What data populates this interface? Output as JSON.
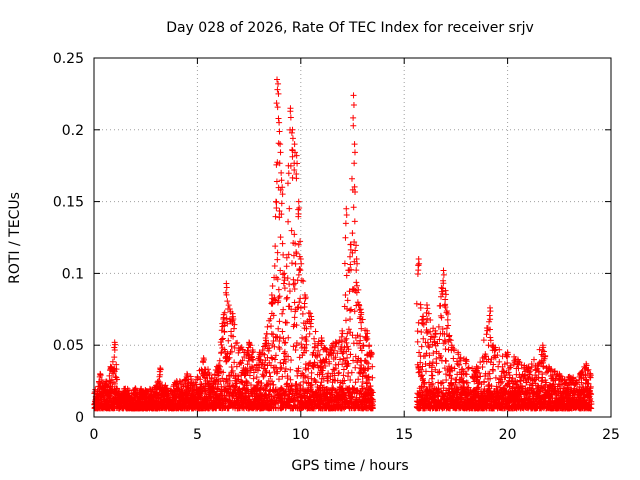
{
  "chart_data": {
    "type": "scatter",
    "title": "Day 028 of 2026, Rate Of TEC Index for receiver srjv",
    "xlabel": "GPS time / hours",
    "ylabel": "ROTI / TECUs",
    "xlim": [
      0,
      25
    ],
    "ylim": [
      0,
      0.25
    ],
    "xticks": [
      0,
      5,
      10,
      15,
      20,
      25
    ],
    "yticks": [
      0,
      0.05,
      0.1,
      0.15,
      0.2,
      0.25
    ],
    "xtick_labels": [
      "0",
      "5",
      "10",
      "15",
      "20",
      "25"
    ],
    "ytick_labels": [
      "0",
      "0.05",
      "0.1",
      "0.15",
      "0.2",
      "0.25"
    ],
    "grid": true,
    "marker": "+",
    "marker_color": "#ff0000",
    "data_gap_hours": [
      13.5,
      15.6
    ],
    "series": [
      {
        "name": "ROTI",
        "points": [
          [
            0.1,
            0.013
          ],
          [
            0.3,
            0.03
          ],
          [
            0.5,
            0.022
          ],
          [
            0.8,
            0.035
          ],
          [
            1.0,
            0.052
          ],
          [
            1.2,
            0.018
          ],
          [
            1.5,
            0.015
          ],
          [
            2.0,
            0.02
          ],
          [
            2.5,
            0.018
          ],
          [
            3.0,
            0.022
          ],
          [
            3.2,
            0.034
          ],
          [
            3.5,
            0.02
          ],
          [
            4.0,
            0.025
          ],
          [
            4.5,
            0.03
          ],
          [
            5.0,
            0.028
          ],
          [
            5.3,
            0.041
          ],
          [
            5.8,
            0.025
          ],
          [
            6.2,
            0.065
          ],
          [
            6.4,
            0.093
          ],
          [
            6.7,
            0.072
          ],
          [
            7.0,
            0.048
          ],
          [
            7.5,
            0.052
          ],
          [
            8.0,
            0.045
          ],
          [
            8.3,
            0.055
          ],
          [
            8.6,
            0.085
          ],
          [
            8.8,
            0.15
          ],
          [
            8.85,
            0.235
          ],
          [
            8.9,
            0.232
          ],
          [
            8.95,
            0.205
          ],
          [
            9.0,
            0.19
          ],
          [
            9.05,
            0.17
          ],
          [
            9.1,
            0.16
          ],
          [
            9.2,
            0.1
          ],
          [
            9.4,
            0.175
          ],
          [
            9.5,
            0.215
          ],
          [
            9.6,
            0.2
          ],
          [
            9.7,
            0.19
          ],
          [
            9.8,
            0.182
          ],
          [
            9.9,
            0.15
          ],
          [
            10.0,
            0.11
          ],
          [
            10.2,
            0.085
          ],
          [
            10.5,
            0.07
          ],
          [
            11.0,
            0.055
          ],
          [
            11.5,
            0.05
          ],
          [
            12.0,
            0.06
          ],
          [
            12.2,
            0.145
          ],
          [
            12.4,
            0.12
          ],
          [
            12.55,
            0.224
          ],
          [
            12.6,
            0.19
          ],
          [
            12.7,
            0.11
          ],
          [
            12.9,
            0.075
          ],
          [
            13.2,
            0.06
          ],
          [
            13.4,
            0.045
          ],
          [
            15.7,
            0.11
          ],
          [
            15.9,
            0.07
          ],
          [
            16.1,
            0.078
          ],
          [
            16.5,
            0.06
          ],
          [
            16.8,
            0.09
          ],
          [
            16.9,
            0.102
          ],
          [
            17.0,
            0.088
          ],
          [
            17.3,
            0.05
          ],
          [
            18.0,
            0.04
          ],
          [
            18.5,
            0.035
          ],
          [
            19.0,
            0.062
          ],
          [
            19.15,
            0.076
          ],
          [
            19.3,
            0.05
          ],
          [
            20.0,
            0.045
          ],
          [
            20.5,
            0.04
          ],
          [
            21.0,
            0.035
          ],
          [
            21.7,
            0.05
          ],
          [
            22.0,
            0.035
          ],
          [
            22.5,
            0.03
          ],
          [
            23.0,
            0.028
          ],
          [
            23.5,
            0.03
          ],
          [
            23.8,
            0.037
          ],
          [
            24.0,
            0.03
          ]
        ]
      }
    ]
  }
}
